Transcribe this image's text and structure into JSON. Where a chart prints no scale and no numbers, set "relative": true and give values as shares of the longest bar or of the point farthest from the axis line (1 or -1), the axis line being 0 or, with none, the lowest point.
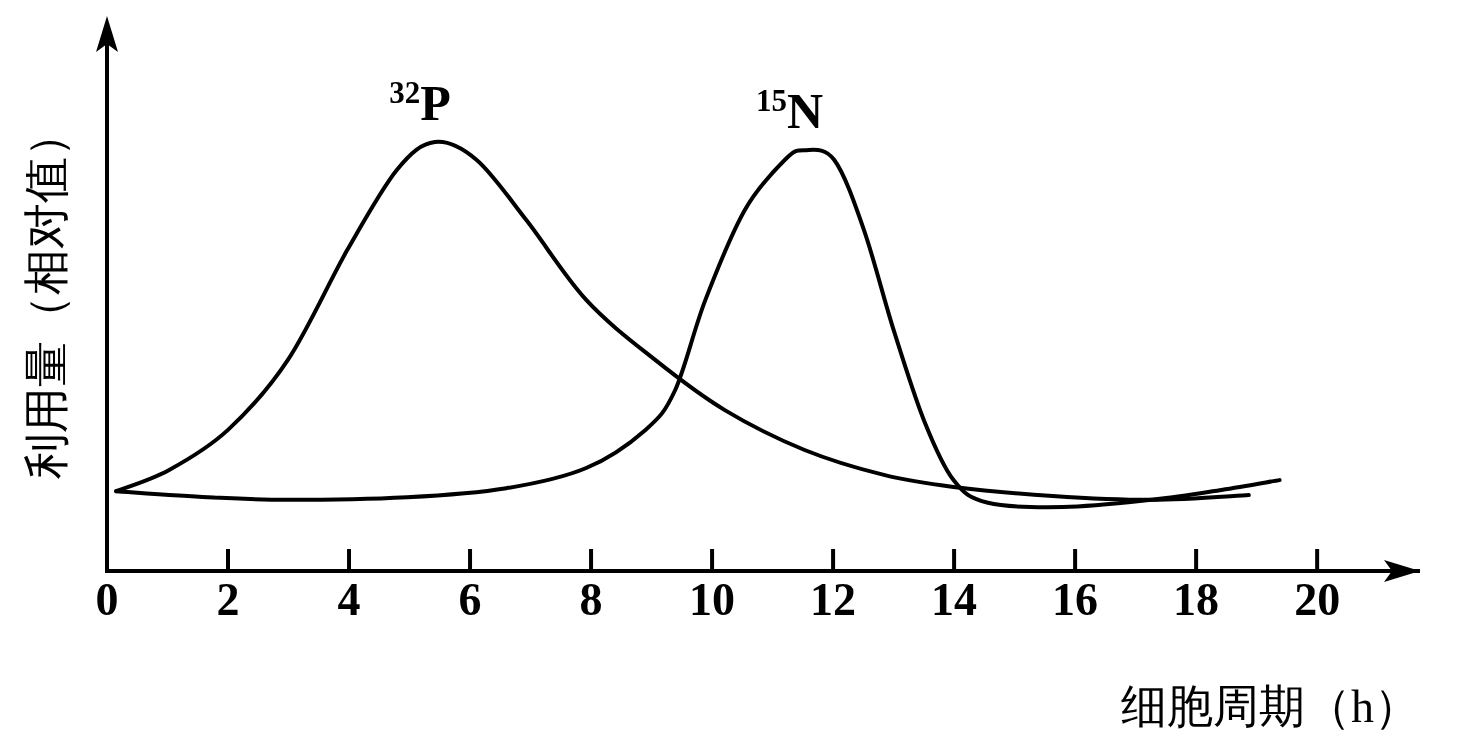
{
  "chart_data": {
    "type": "line",
    "relative": true,
    "xlabel": "细胞周期（h）",
    "ylabel": "利用量（相对值）",
    "xlim": [
      0,
      21.7
    ],
    "xticks": [
      {
        "value": 0,
        "label": "0"
      },
      2,
      4,
      6,
      8,
      10,
      12,
      14,
      16,
      18,
      20
    ],
    "series": [
      {
        "name": "$^{32}$P",
        "color": "#000000",
        "x": [
          0.15,
          1.02,
          2.0,
          2.99,
          3.97,
          4.79,
          5.42,
          6.11,
          6.93,
          7.92,
          9.06,
          10.21,
          11.53,
          12.84,
          13.99,
          15.63,
          17.27,
          18.87
        ],
        "values": [
          0.186,
          0.235,
          0.329,
          0.492,
          0.748,
          0.935,
          1,
          0.958,
          0.818,
          0.632,
          0.492,
          0.375,
          0.282,
          0.224,
          0.196,
          0.175,
          0.166,
          0.177
        ]
      },
      {
        "name": "$^{15}$N",
        "color": "#000000",
        "x": [
          0.15,
          1.67,
          2.99,
          4.96,
          6.6,
          7.92,
          8.9,
          9.39,
          9.89,
          10.54,
          11.2,
          11.53,
          12.02,
          12.51,
          13.0,
          13.5,
          13.99,
          14.56,
          15.8,
          17.27,
          18.42,
          19.38
        ],
        "values": [
          0.186,
          0.172,
          0.166,
          0.172,
          0.193,
          0.24,
          0.329,
          0.422,
          0.632,
          0.841,
          0.958,
          0.981,
          0.958,
          0.795,
          0.562,
          0.352,
          0.212,
          0.159,
          0.149,
          0.166,
          0.189,
          0.212
        ]
      }
    ]
  }
}
